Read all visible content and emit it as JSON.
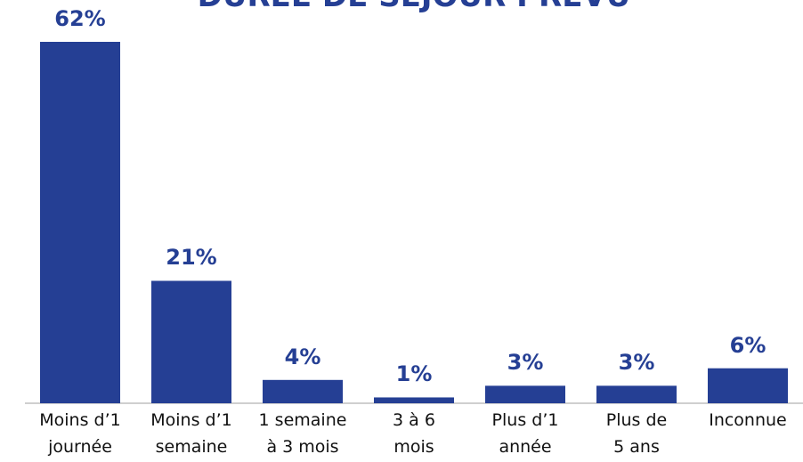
{
  "chart_data": {
    "type": "bar",
    "title": "DURÉE DE SÉJOUR PRÉVU",
    "categories": [
      "Moins d’1\njournée",
      "Moins d’1\nsemaine",
      "1 semaine\nà 3 mois",
      "3 à 6\nmois",
      "Plus d’1\nannée",
      "Plus de\n5 ans",
      "Inconnue"
    ],
    "values": [
      62,
      21,
      4,
      1,
      3,
      3,
      6
    ],
    "value_labels": [
      "62%",
      "21%",
      "4%",
      "1%",
      "3%",
      "3%",
      "6%"
    ],
    "color": "#253f94"
  }
}
